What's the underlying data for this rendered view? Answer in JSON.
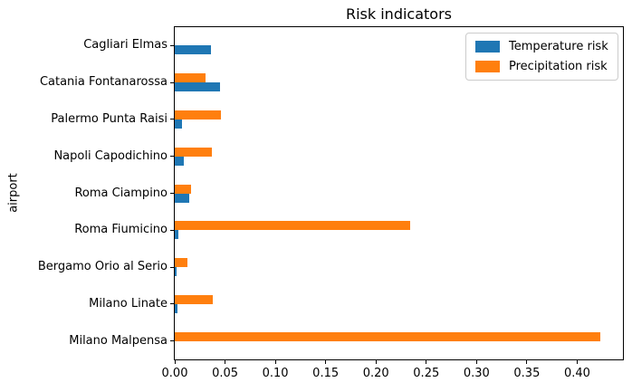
{
  "figure": {
    "background": "#ffffff",
    "axis_color": "#000000",
    "text_color": "#000000"
  },
  "chart_data": {
    "type": "bar",
    "orientation": "horizontal",
    "title": "Risk indicators",
    "xlabel": "",
    "ylabel": "airport",
    "grid": false,
    "categories_order": "top-to-bottom",
    "categories": [
      "Cagliari Elmas",
      "Catania Fontanarossa",
      "Palermo Punta Raisi",
      "Napoli Capodichino",
      "Roma Ciampino",
      "Roma Fiumicino",
      "Bergamo Orio al Serio",
      "Milano Linate",
      "Milano Malpensa"
    ],
    "series": [
      {
        "name": "Temperature risk",
        "color": "#1f77b4",
        "values": [
          0.036,
          0.045,
          0.007,
          0.009,
          0.014,
          0.004,
          0.002,
          0.003,
          0.0
        ]
      },
      {
        "name": "Precipitation risk",
        "color": "#ff7f0e",
        "values": [
          0.0,
          0.031,
          0.046,
          0.037,
          0.016,
          0.234,
          0.013,
          0.038,
          0.423
        ]
      }
    ],
    "xlim": [
      0,
      0.4455
    ],
    "xticks": [
      {
        "value": 0.0,
        "label": "0.00"
      },
      {
        "value": 0.05,
        "label": "0.05"
      },
      {
        "value": 0.1,
        "label": "0.10"
      },
      {
        "value": 0.15,
        "label": "0.15"
      },
      {
        "value": 0.2,
        "label": "0.20"
      },
      {
        "value": 0.25,
        "label": "0.25"
      },
      {
        "value": 0.3,
        "label": "0.30"
      },
      {
        "value": 0.35,
        "label": "0.35"
      },
      {
        "value": 0.4,
        "label": "0.40"
      }
    ],
    "legend": {
      "position": "upper right",
      "entries": [
        "Temperature risk",
        "Precipitation risk"
      ]
    }
  }
}
